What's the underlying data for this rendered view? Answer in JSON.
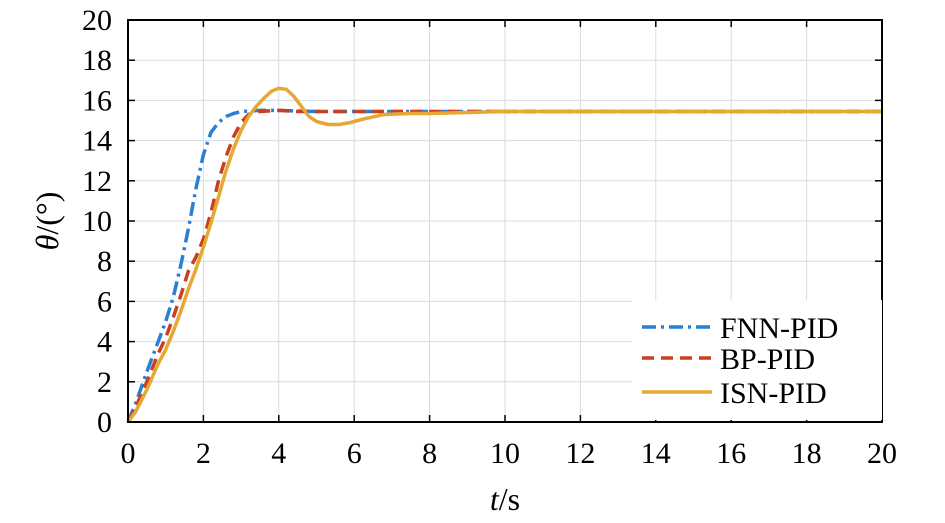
{
  "chart_data": {
    "type": "line",
    "title": "",
    "xlabel_italic": "t",
    "xlabel_unit": "/s",
    "ylabel_italic": "θ",
    "ylabel_unit": "/(°)",
    "xlim": [
      0,
      20
    ],
    "ylim": [
      0,
      20
    ],
    "xticks": [
      "0",
      "2",
      "4",
      "6",
      "8",
      "10",
      "12",
      "14",
      "16",
      "18",
      "20"
    ],
    "yticks": [
      "0",
      "2",
      "4",
      "6",
      "8",
      "10",
      "12",
      "14",
      "16",
      "18",
      "20"
    ],
    "grid": true,
    "legend_position": "bottom-right",
    "series": [
      {
        "name": "FNN-PID",
        "color": "#2a7fd4",
        "dash": "dash-dot",
        "points": [
          [
            0,
            0
          ],
          [
            0.2,
            0.9
          ],
          [
            0.5,
            2.5
          ],
          [
            0.8,
            4.0
          ],
          [
            1.0,
            5.0
          ],
          [
            1.2,
            6.2
          ],
          [
            1.4,
            7.8
          ],
          [
            1.6,
            9.6
          ],
          [
            1.8,
            11.6
          ],
          [
            2.0,
            13.3
          ],
          [
            2.2,
            14.4
          ],
          [
            2.4,
            14.9
          ],
          [
            2.6,
            15.2
          ],
          [
            2.8,
            15.35
          ],
          [
            3.0,
            15.45
          ],
          [
            3.5,
            15.5
          ],
          [
            4.0,
            15.5
          ],
          [
            5.0,
            15.45
          ],
          [
            6.0,
            15.45
          ],
          [
            7.0,
            15.45
          ],
          [
            8.0,
            15.45
          ],
          [
            10,
            15.45
          ],
          [
            12,
            15.45
          ],
          [
            15,
            15.45
          ],
          [
            20,
            15.45
          ]
        ]
      },
      {
        "name": "BP-PID",
        "color": "#c8401e",
        "dash": "dash",
        "points": [
          [
            0,
            0
          ],
          [
            0.2,
            0.7
          ],
          [
            0.5,
            2.0
          ],
          [
            0.8,
            3.4
          ],
          [
            1.0,
            4.2
          ],
          [
            1.2,
            5.2
          ],
          [
            1.4,
            6.3
          ],
          [
            1.6,
            7.5
          ],
          [
            1.8,
            8.2
          ],
          [
            2.0,
            9.1
          ],
          [
            2.2,
            10.4
          ],
          [
            2.4,
            12.0
          ],
          [
            2.6,
            13.2
          ],
          [
            2.8,
            14.2
          ],
          [
            3.0,
            14.9
          ],
          [
            3.2,
            15.3
          ],
          [
            3.5,
            15.45
          ],
          [
            4.0,
            15.5
          ],
          [
            4.5,
            15.45
          ],
          [
            5.0,
            15.45
          ],
          [
            6.0,
            15.45
          ],
          [
            7.0,
            15.45
          ],
          [
            8.0,
            15.45
          ],
          [
            10,
            15.45
          ],
          [
            15,
            15.45
          ],
          [
            20,
            15.45
          ]
        ]
      },
      {
        "name": "ISN-PID",
        "color": "#e6a833",
        "dash": "solid",
        "points": [
          [
            0,
            0
          ],
          [
            0.2,
            0.5
          ],
          [
            0.5,
            1.6
          ],
          [
            0.8,
            2.9
          ],
          [
            1.0,
            3.6
          ],
          [
            1.2,
            4.5
          ],
          [
            1.4,
            5.5
          ],
          [
            1.6,
            6.6
          ],
          [
            1.8,
            7.6
          ],
          [
            2.0,
            8.7
          ],
          [
            2.2,
            9.9
          ],
          [
            2.4,
            11.2
          ],
          [
            2.6,
            12.5
          ],
          [
            2.8,
            13.6
          ],
          [
            3.0,
            14.5
          ],
          [
            3.2,
            15.2
          ],
          [
            3.4,
            15.7
          ],
          [
            3.6,
            16.1
          ],
          [
            3.8,
            16.45
          ],
          [
            4.0,
            16.6
          ],
          [
            4.2,
            16.55
          ],
          [
            4.4,
            16.2
          ],
          [
            4.6,
            15.7
          ],
          [
            4.8,
            15.2
          ],
          [
            5.0,
            14.95
          ],
          [
            5.3,
            14.8
          ],
          [
            5.6,
            14.8
          ],
          [
            5.9,
            14.9
          ],
          [
            6.3,
            15.1
          ],
          [
            6.8,
            15.3
          ],
          [
            7.5,
            15.35
          ],
          [
            8.0,
            15.35
          ],
          [
            9.0,
            15.4
          ],
          [
            10,
            15.45
          ],
          [
            12,
            15.45
          ],
          [
            15,
            15.45
          ],
          [
            20,
            15.45
          ]
        ]
      }
    ]
  }
}
